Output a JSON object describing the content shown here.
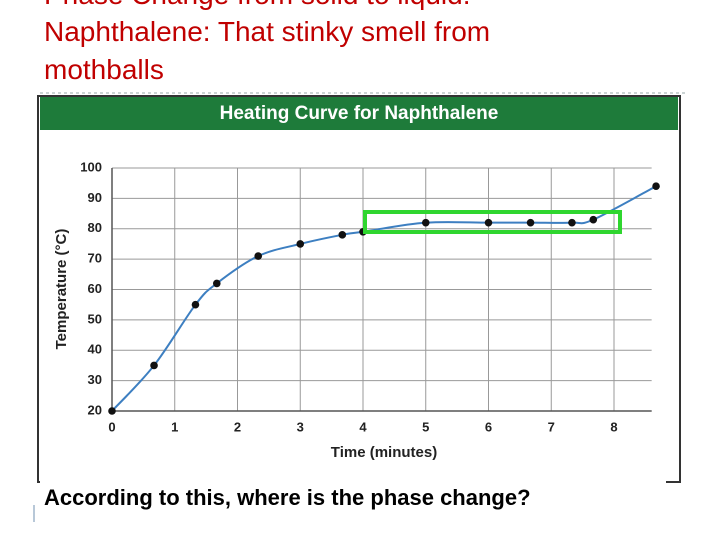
{
  "slide": {
    "title_lines": [
      "Phase Change from solid to liquid:",
      "Naphthalene: That stinky smell from",
      "mothballs"
    ],
    "question": "According to this, where is the phase change?"
  },
  "chart_data": {
    "type": "line",
    "title": "Heating Curve for Naphthalene",
    "x_label": "Time (minutes)",
    "y_label": "Temperature (°C)",
    "x": [
      0,
      0.67,
      1.33,
      1.67,
      2.33,
      3,
      3.67,
      4,
      5,
      6,
      6.67,
      7.33,
      7.67,
      8.67
    ],
    "series": [
      {
        "name": "Naphthalene",
        "color": "#3d7fc1",
        "values": [
          20,
          35,
          55,
          62,
          71,
          75,
          78,
          79,
          82,
          82,
          82,
          82,
          83,
          94
        ]
      }
    ],
    "xlim": [
      0,
      8.6
    ],
    "xticks": [
      0,
      1,
      2,
      3,
      4,
      5,
      6,
      7,
      8
    ],
    "ylim": [
      20,
      100
    ],
    "yticks": [
      20,
      30,
      40,
      50,
      60,
      70,
      80,
      90,
      100
    ],
    "grid": true,
    "header_color": "#1e7b3a",
    "highlight_color": "#2fd62f"
  }
}
